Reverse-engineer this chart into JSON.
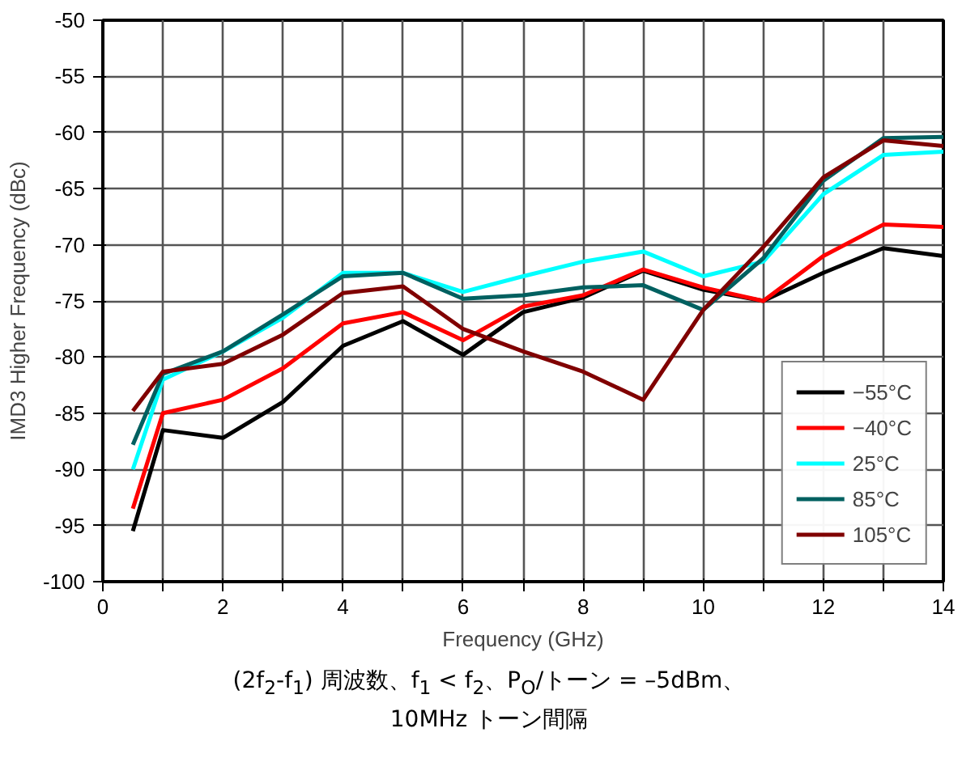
{
  "chart_data": {
    "type": "line",
    "xlabel": "Frequency (GHz)",
    "ylabel": "IMD3 Higher Frequency (dBc)",
    "annotations": [
      "(2f$_{2}$-f$_{1}$) 周波数、f$_{1}$ < f$_{2}$、P$_{O}$/トーン = –5dBm、",
      "10MHz トーン間隔"
    ],
    "x": [
      0.5,
      1,
      2,
      3,
      4,
      5,
      6,
      7,
      8,
      9,
      10,
      11,
      12,
      13,
      14
    ],
    "series": [
      {
        "name": "−55°C",
        "color": "#000000",
        "values": [
          -95.5,
          -86.5,
          -87.2,
          -84,
          -79,
          -76.8,
          -79.8,
          -76,
          -74.7,
          -72.3,
          -74,
          -75,
          -72.5,
          -70.3,
          -71
        ]
      },
      {
        "name": "−40°C",
        "color": "#ff0000",
        "values": [
          -93.5,
          -85,
          -83.8,
          -81,
          -77,
          -76,
          -78.5,
          -75.5,
          -74.5,
          -72.2,
          -73.8,
          -75,
          -71,
          -68.2,
          -68.4
        ]
      },
      {
        "name": "25°C",
        "color": "#00ffff",
        "values": [
          -90,
          -82,
          -79.5,
          -76.5,
          -72.5,
          -72.5,
          -74.2,
          -72.8,
          -71.5,
          -70.6,
          -72.8,
          -71.5,
          -65.5,
          -62,
          -61.7
        ]
      },
      {
        "name": "85°C",
        "color": "#006060",
        "values": [
          -87.8,
          -81.5,
          -79.5,
          -76.2,
          -72.8,
          -72.5,
          -74.8,
          -74.5,
          -73.8,
          -73.6,
          -75.8,
          -71.2,
          -64.3,
          -60.5,
          -60.4
        ]
      },
      {
        "name": "105°C",
        "color": "#800000",
        "values": [
          -84.8,
          -81.3,
          -80.6,
          -78,
          -74.3,
          -73.7,
          -77.5,
          -79.5,
          -81.3,
          -83.8,
          -75.8,
          -70.2,
          -64,
          -60.7,
          -61.2
        ]
      }
    ],
    "xlim": [
      0,
      14
    ],
    "ylim": [
      -100,
      -50
    ],
    "xticks": [
      0,
      {
        "value": 1,
        "label": null
      },
      2,
      {
        "value": 3,
        "label": null
      },
      4,
      {
        "value": 5,
        "label": null
      },
      6,
      {
        "value": 7,
        "label": null
      },
      8,
      {
        "value": 9,
        "label": null
      },
      10,
      {
        "value": 11,
        "label": null
      },
      12,
      {
        "value": 13,
        "label": null
      },
      14
    ],
    "yticks": [
      -100,
      -95,
      -90,
      -85,
      -80,
      -75,
      -70,
      -65,
      -60,
      -55,
      -50
    ],
    "grid": true,
    "legend": "bottom right",
    "line_style": "solid",
    "marker": "none"
  }
}
